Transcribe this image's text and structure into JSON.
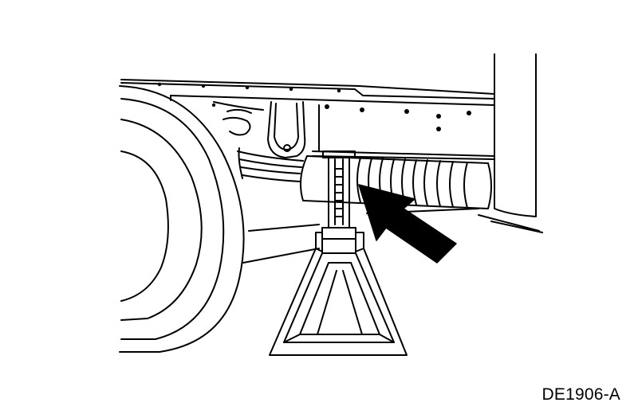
{
  "figure": {
    "code": "DE1906-A"
  },
  "colors": {
    "line": "#000000",
    "fill": "#ffffff"
  },
  "icons": {
    "pointer": "black-arrow-icon"
  }
}
